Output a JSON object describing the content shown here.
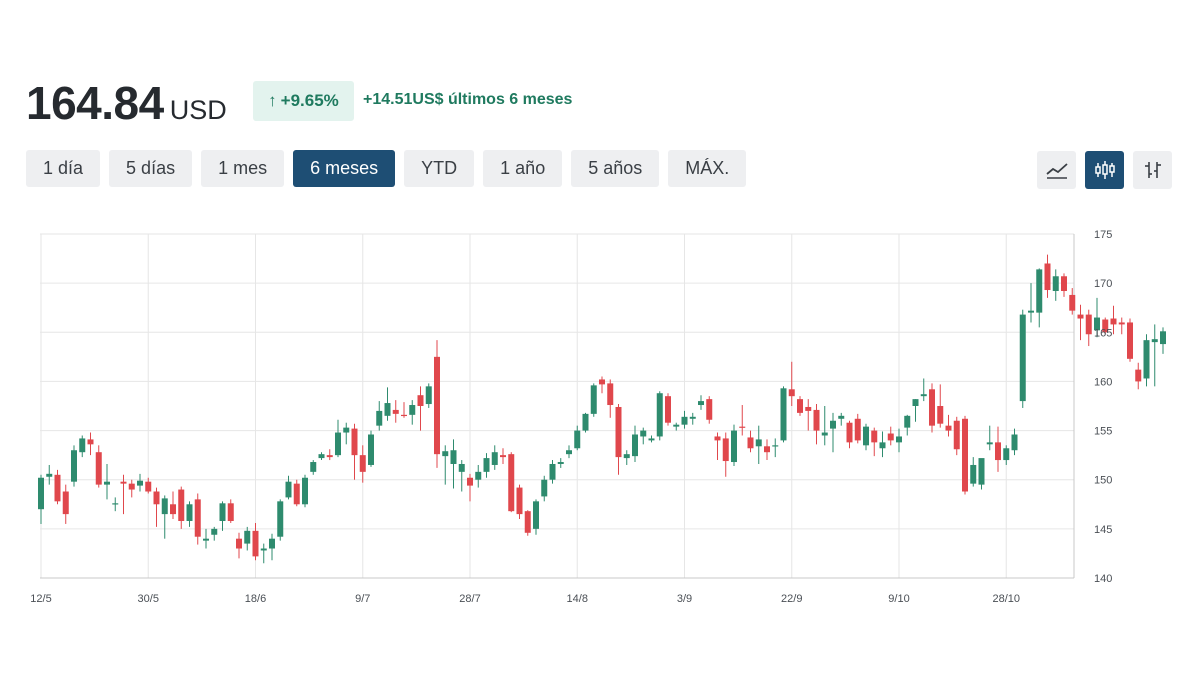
{
  "header": {
    "price": "164.84",
    "currency": "USD",
    "change_arrow": "↑",
    "change_percent": "+9.65%",
    "change_text": "+14.51US$ últimos 6 meses"
  },
  "ranges": [
    {
      "label": "1 día",
      "active": false
    },
    {
      "label": "5 días",
      "active": false
    },
    {
      "label": "1 mes",
      "active": false
    },
    {
      "label": "6 meses",
      "active": true
    },
    {
      "label": "YTD",
      "active": false
    },
    {
      "label": "1 año",
      "active": false
    },
    {
      "label": "5 años",
      "active": false
    },
    {
      "label": "MÁX.",
      "active": false
    }
  ],
  "view_buttons": [
    {
      "icon": "line-chart-icon",
      "active": false
    },
    {
      "icon": "candlestick-icon",
      "active": true
    },
    {
      "icon": "ohlc-bars-icon",
      "active": false
    }
  ],
  "colors": {
    "up": "#2e8b6e",
    "down": "#e0474c",
    "grid": "#e6e6e6",
    "accent": "#1e4e74"
  },
  "chart_data": {
    "type": "candlestick",
    "x_tick_labels": [
      "12/5",
      "30/5",
      "18/6",
      "9/7",
      "28/7",
      "14/8",
      "3/9",
      "22/9",
      "9/10",
      "28/10"
    ],
    "x_tick_index": [
      0,
      13,
      26,
      39,
      52,
      65,
      78,
      91,
      104,
      117
    ],
    "y_ticks": [
      175,
      170,
      165,
      160,
      155,
      150,
      145,
      140
    ],
    "ylim": [
      140,
      175
    ],
    "y_axis_side": "right",
    "grid": true,
    "ohlc": [
      [
        147,
        150.5,
        145.5,
        150.2
      ],
      [
        150.3,
        151.5,
        149.5,
        150.6
      ],
      [
        150.5,
        151,
        147.5,
        147.8
      ],
      [
        148.8,
        149.5,
        145.5,
        146.5
      ],
      [
        149.8,
        153.5,
        149.3,
        153
      ],
      [
        152.8,
        154.5,
        152.3,
        154.2
      ],
      [
        154.1,
        154.8,
        152.5,
        153.6
      ],
      [
        152.8,
        153.5,
        149.2,
        149.5
      ],
      [
        149.5,
        151.6,
        148,
        149.8
      ],
      [
        147.5,
        148.2,
        146.8,
        147.6
      ],
      [
        149.8,
        150.5,
        146.5,
        149.6
      ],
      [
        149.6,
        150,
        148.2,
        149
      ],
      [
        149.4,
        150.6,
        148.8,
        149.9
      ],
      [
        149.8,
        150.2,
        148.6,
        148.8
      ],
      [
        148.8,
        149.2,
        145.2,
        147.5
      ],
      [
        146.5,
        148.4,
        144,
        148.1
      ],
      [
        147.5,
        148.8,
        146,
        146.5
      ],
      [
        149,
        149.3,
        145,
        145.8
      ],
      [
        145.8,
        147.8,
        145.2,
        147.5
      ],
      [
        148,
        148.6,
        143.4,
        144.2
      ],
      [
        143.8,
        145,
        143,
        144
      ],
      [
        144.4,
        145.2,
        143.8,
        145
      ],
      [
        145.8,
        147.8,
        144.8,
        147.6
      ],
      [
        147.6,
        148,
        145.6,
        145.8
      ],
      [
        144,
        144.6,
        142,
        143
      ],
      [
        143.5,
        145.2,
        142.8,
        144.8
      ],
      [
        144.8,
        145.6,
        141.8,
        142.2
      ],
      [
        142.8,
        143.5,
        141.5,
        143
      ],
      [
        143,
        144.5,
        141.8,
        144
      ],
      [
        144.2,
        148,
        143.8,
        147.8
      ],
      [
        148.2,
        150.4,
        148,
        149.8
      ],
      [
        149.6,
        150,
        147.3,
        147.5
      ],
      [
        147.5,
        150.5,
        147.2,
        150.2
      ],
      [
        150.8,
        152,
        150.5,
        151.8
      ],
      [
        152.2,
        152.8,
        152,
        152.6
      ],
      [
        152.5,
        153.1,
        152,
        152.3
      ],
      [
        152.5,
        156.1,
        152.3,
        154.8
      ],
      [
        154.8,
        155.8,
        153.6,
        155.3
      ],
      [
        155.2,
        155.7,
        150,
        152.5
      ],
      [
        152.5,
        153.5,
        149.7,
        150.8
      ],
      [
        151.5,
        155,
        151.3,
        154.6
      ],
      [
        155.5,
        158,
        155,
        157
      ],
      [
        156.5,
        159.4,
        156,
        157.8
      ],
      [
        157.1,
        158.1,
        155.8,
        156.7
      ],
      [
        156.6,
        157.9,
        156.3,
        156.5
      ],
      [
        156.6,
        158.1,
        155.6,
        157.6
      ],
      [
        158.6,
        159.5,
        155,
        157.5
      ],
      [
        157.7,
        159.8,
        157.3,
        159.5
      ],
      [
        162.5,
        164.2,
        151.2,
        152.6
      ],
      [
        152.4,
        153.5,
        149.5,
        152.9
      ],
      [
        151.6,
        154.1,
        149.1,
        153
      ],
      [
        150.8,
        152,
        148.8,
        151.6
      ],
      [
        150.2,
        150.6,
        147.8,
        149.4
      ],
      [
        150,
        151.5,
        149.2,
        150.8
      ],
      [
        150.8,
        152.7,
        150.2,
        152.2
      ],
      [
        151.5,
        153.5,
        151,
        152.8
      ],
      [
        152.5,
        153.2,
        151.6,
        152.3
      ],
      [
        152.6,
        152.8,
        146.7,
        146.8
      ],
      [
        149.2,
        149.5,
        146,
        146.5
      ],
      [
        146.8,
        146.9,
        144.3,
        144.6
      ],
      [
        145,
        148,
        144.4,
        147.8
      ],
      [
        148.3,
        150.4,
        147.8,
        150
      ],
      [
        150,
        152,
        149.6,
        151.6
      ],
      [
        151.6,
        152.2,
        151.2,
        151.8
      ],
      [
        152.6,
        153.5,
        152.2,
        153
      ],
      [
        153.2,
        155.5,
        153,
        155
      ],
      [
        155,
        156.8,
        154.8,
        156.7
      ],
      [
        156.7,
        159.8,
        156.4,
        159.6
      ],
      [
        160.2,
        160.5,
        158.8,
        159.7
      ],
      [
        159.8,
        160.2,
        156.3,
        157.6
      ],
      [
        157.4,
        157.7,
        150.5,
        152.3
      ],
      [
        152.2,
        153,
        151.5,
        152.6
      ],
      [
        152.4,
        155.5,
        151.8,
        154.6
      ],
      [
        154.4,
        155.3,
        153.6,
        155
      ],
      [
        154,
        154.5,
        153.8,
        154.2
      ],
      [
        154.4,
        159,
        154,
        158.8
      ],
      [
        158.5,
        158.8,
        155.5,
        155.8
      ],
      [
        155.4,
        155.8,
        155,
        155.6
      ],
      [
        155.6,
        157,
        155.2,
        156.4
      ],
      [
        156.2,
        156.8,
        155.6,
        156.4
      ],
      [
        157.6,
        158.6,
        157.1,
        158
      ],
      [
        158.2,
        158.5,
        155.7,
        156.1
      ],
      [
        154.4,
        154.8,
        152,
        154
      ],
      [
        154.2,
        154.8,
        150.3,
        151.9
      ],
      [
        151.8,
        155.6,
        151.4,
        155
      ],
      [
        155.4,
        157.6,
        154.5,
        155.3
      ],
      [
        154.3,
        155,
        152.8,
        153.2
      ],
      [
        153.4,
        155.5,
        151.6,
        154.1
      ],
      [
        153.4,
        154.1,
        152,
        152.8
      ],
      [
        153.5,
        154.2,
        152.3,
        153.5
      ],
      [
        154,
        159.5,
        153.8,
        159.3
      ],
      [
        159.2,
        162,
        157.5,
        158.5
      ],
      [
        158.2,
        158.5,
        156.5,
        156.8
      ],
      [
        157.4,
        158.2,
        155,
        157
      ],
      [
        157.1,
        157.7,
        153.6,
        155
      ],
      [
        154.5,
        157.5,
        153.5,
        154.8
      ],
      [
        155.2,
        156.8,
        152.8,
        156
      ],
      [
        156.2,
        156.8,
        155.5,
        156.5
      ],
      [
        155.8,
        156,
        153.2,
        153.8
      ],
      [
        156.2,
        156.7,
        153.7,
        154
      ],
      [
        153.5,
        155.7,
        153,
        155.4
      ],
      [
        155,
        155.3,
        152.4,
        153.8
      ],
      [
        153.2,
        154.9,
        152.3,
        153.8
      ],
      [
        154.7,
        155.4,
        153.5,
        154
      ],
      [
        153.8,
        155.2,
        152.8,
        154.4
      ],
      [
        155.3,
        156.6,
        154.5,
        156.5
      ],
      [
        157.5,
        158.2,
        155.9,
        158.2
      ],
      [
        158.5,
        160.3,
        158,
        158.7
      ],
      [
        159.2,
        159.8,
        154.8,
        155.5
      ],
      [
        157.5,
        159.7,
        155.3,
        155.7
      ],
      [
        155.5,
        156.6,
        154.4,
        155
      ],
      [
        156,
        156.4,
        152.5,
        153.1
      ],
      [
        156.2,
        156.5,
        148.5,
        148.8
      ],
      [
        149.6,
        152.3,
        149.3,
        151.5
      ],
      [
        149.5,
        152,
        149,
        152.2
      ],
      [
        153.6,
        155.5,
        153,
        153.8
      ],
      [
        153.8,
        155.4,
        150.8,
        152
      ],
      [
        152,
        153.5,
        151.5,
        153.2
      ],
      [
        153,
        155.2,
        152.5,
        154.6
      ],
      [
        158,
        167.3,
        157.3,
        166.8
      ],
      [
        167,
        170,
        166,
        167.2
      ],
      [
        167,
        171.5,
        165.5,
        171.4
      ],
      [
        172,
        172.9,
        168.5,
        169.3
      ],
      [
        169.2,
        171.4,
        168.2,
        170.7
      ],
      [
        170.7,
        171,
        168.6,
        169.2
      ],
      [
        168.8,
        169.5,
        166.8,
        167.2
      ],
      [
        166.8,
        167.8,
        164.2,
        166.4
      ],
      [
        166.8,
        167.3,
        163.6,
        164.8
      ],
      [
        165.2,
        168.5,
        164.5,
        166.5
      ],
      [
        166.3,
        166.5,
        164.8,
        165
      ],
      [
        166.4,
        167.7,
        164.8,
        165.8
      ],
      [
        166,
        166.5,
        164.8,
        165.8
      ],
      [
        166,
        166.4,
        162,
        162.3
      ],
      [
        161.2,
        161.9,
        159.2,
        160
      ],
      [
        160.3,
        164.8,
        159.5,
        164.2
      ],
      [
        164,
        165.8,
        159.5,
        164.3
      ],
      [
        163.8,
        165.5,
        162.8,
        165.1
      ]
    ]
  }
}
